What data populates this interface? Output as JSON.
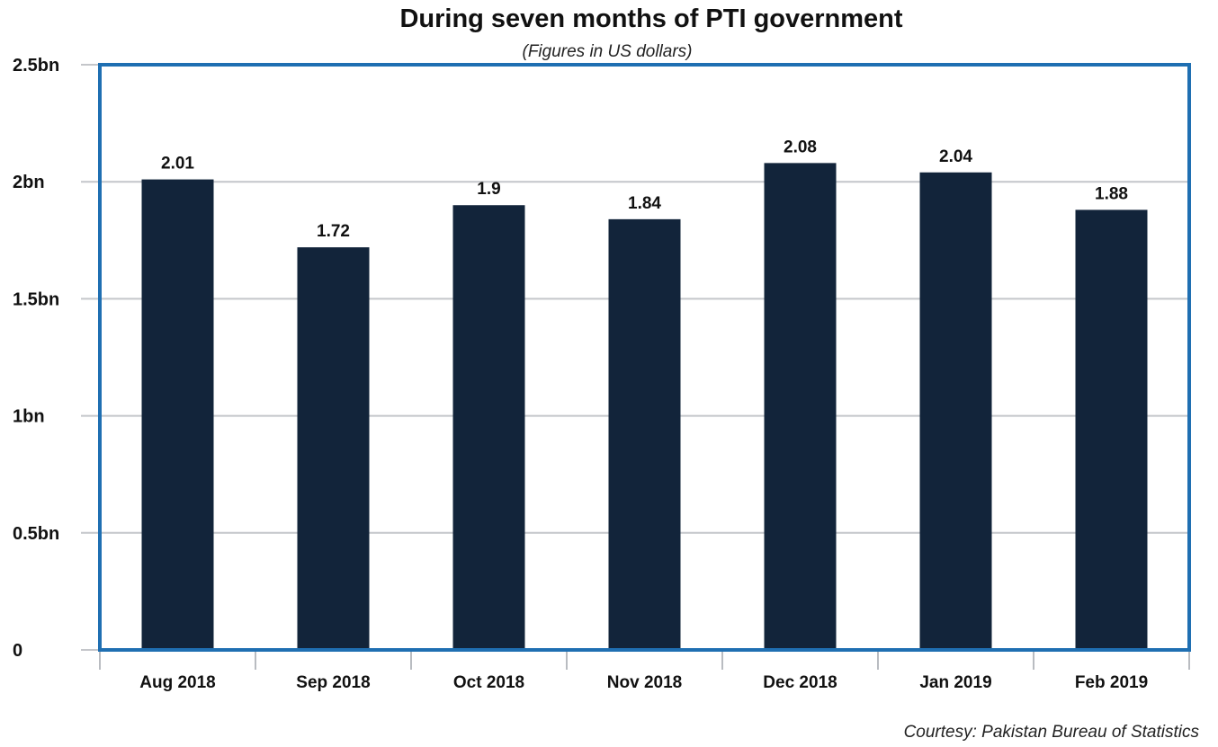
{
  "chart_data": {
    "type": "bar",
    "title": "During seven months of PTI government",
    "subtitle": "(Figures in US dollars)",
    "categories": [
      "Aug 2018",
      "Sep 2018",
      "Oct 2018",
      "Nov 2018",
      "Dec 2018",
      "Jan 2019",
      "Feb 2019"
    ],
    "values": [
      2.01,
      1.72,
      1.9,
      1.84,
      2.08,
      2.04,
      1.88
    ],
    "value_labels": [
      "2.01",
      "1.72",
      "1.9",
      "1.84",
      "2.08",
      "2.04",
      "1.88"
    ],
    "yticks": [
      0,
      0.5,
      1,
      1.5,
      2,
      2.5
    ],
    "ytick_labels": [
      "0",
      "0.5bn",
      "1bn",
      "1.5bn",
      "2bn",
      "2.5bn"
    ],
    "ylim": [
      0,
      2.5
    ],
    "xlabel": "",
    "ylabel": "",
    "grid": true,
    "source": "Courtesy: Pakistan Bureau of Statistics",
    "colors": {
      "bar": "#12243a",
      "frame": "#1f6fb2",
      "grid": "#c4c6ca",
      "axis_ticks": "#b9bcc1"
    }
  }
}
